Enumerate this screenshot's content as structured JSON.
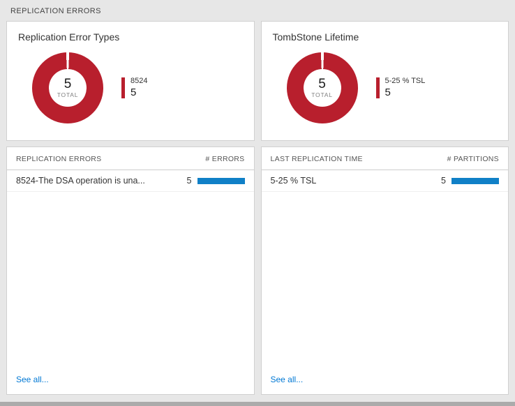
{
  "page": {
    "title": "REPLICATION ERRORS"
  },
  "colors": {
    "accent_red": "#b81f2d",
    "bar_blue": "#1080c7",
    "link_blue": "#0078d4"
  },
  "panels": [
    {
      "chart": {
        "title": "Replication Error Types",
        "total_value": "5",
        "total_label": "TOTAL",
        "legend": {
          "label": "8524",
          "value": "5"
        }
      },
      "table": {
        "header_left": "REPLICATION ERRORS",
        "header_right": "# ERRORS",
        "rows": [
          {
            "label": "8524-The DSA operation is una...",
            "value": "5"
          }
        ],
        "see_all": "See all..."
      }
    },
    {
      "chart": {
        "title": "TombStone Lifetime",
        "total_value": "5",
        "total_label": "TOTAL",
        "legend": {
          "label": "5-25 % TSL",
          "value": "5"
        }
      },
      "table": {
        "header_left": "LAST REPLICATION TIME",
        "header_right": "# PARTITIONS",
        "rows": [
          {
            "label": "5-25 % TSL",
            "value": "5"
          }
        ],
        "see_all": "See all..."
      }
    }
  ],
  "chart_data": [
    {
      "type": "pie",
      "title": "Replication Error Types",
      "categories": [
        "8524"
      ],
      "values": [
        5
      ],
      "total": 5,
      "legend_position": "right"
    },
    {
      "type": "pie",
      "title": "TombStone Lifetime",
      "categories": [
        "5-25 % TSL"
      ],
      "values": [
        5
      ],
      "total": 5,
      "legend_position": "right"
    }
  ]
}
